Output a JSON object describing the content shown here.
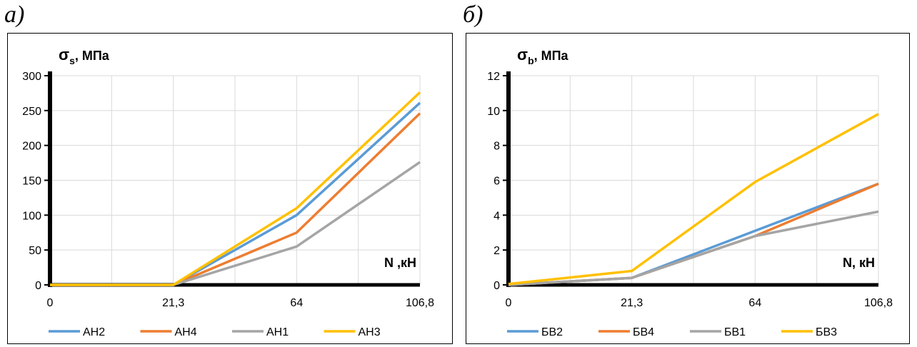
{
  "panels": [
    {
      "letter": "а)"
    },
    {
      "letter": "б)"
    }
  ],
  "chart_data": [
    {
      "type": "line",
      "ylabel": {
        "main": "σ",
        "sub": "s",
        "rest": ", МПа"
      },
      "xlabel": "N ,кН",
      "categories": [
        "0",
        "21,3",
        "64",
        "106,8"
      ],
      "ylim": [
        0,
        300
      ],
      "yticks": [
        0,
        50,
        100,
        150,
        200,
        250,
        300
      ],
      "grid": true,
      "legend": "bottom",
      "series": [
        {
          "name": "АН2",
          "color": "#5b9bd5",
          "values": [
            0,
            0,
            100,
            261
          ]
        },
        {
          "name": "АН4",
          "color": "#ed7d31",
          "values": [
            0,
            0,
            75,
            246
          ]
        },
        {
          "name": "АН1",
          "color": "#a5a5a5",
          "values": [
            0,
            0,
            55,
            176
          ]
        },
        {
          "name": "АН3",
          "color": "#ffc000",
          "values": [
            0,
            0,
            110,
            276
          ]
        }
      ]
    },
    {
      "type": "line",
      "ylabel": {
        "main": "σ",
        "sub": "b",
        "rest": ", МПа"
      },
      "xlabel": "N, кН",
      "categories": [
        "0",
        "21,3",
        "64",
        "106,8"
      ],
      "ylim": [
        0,
        12
      ],
      "yticks": [
        0,
        2,
        4,
        6,
        8,
        10,
        12
      ],
      "grid": true,
      "legend": "bottom",
      "series": [
        {
          "name": "БВ2",
          "color": "#5b9bd5",
          "values": [
            0,
            0.4,
            3.1,
            5.8
          ]
        },
        {
          "name": "БВ4",
          "color": "#ed7d31",
          "values": [
            0,
            0.4,
            2.8,
            5.8
          ]
        },
        {
          "name": "БВ1",
          "color": "#a5a5a5",
          "values": [
            0,
            0.4,
            2.8,
            4.2
          ]
        },
        {
          "name": "БВ3",
          "color": "#ffc000",
          "values": [
            0.05,
            0.8,
            5.9,
            9.8
          ]
        }
      ]
    }
  ]
}
